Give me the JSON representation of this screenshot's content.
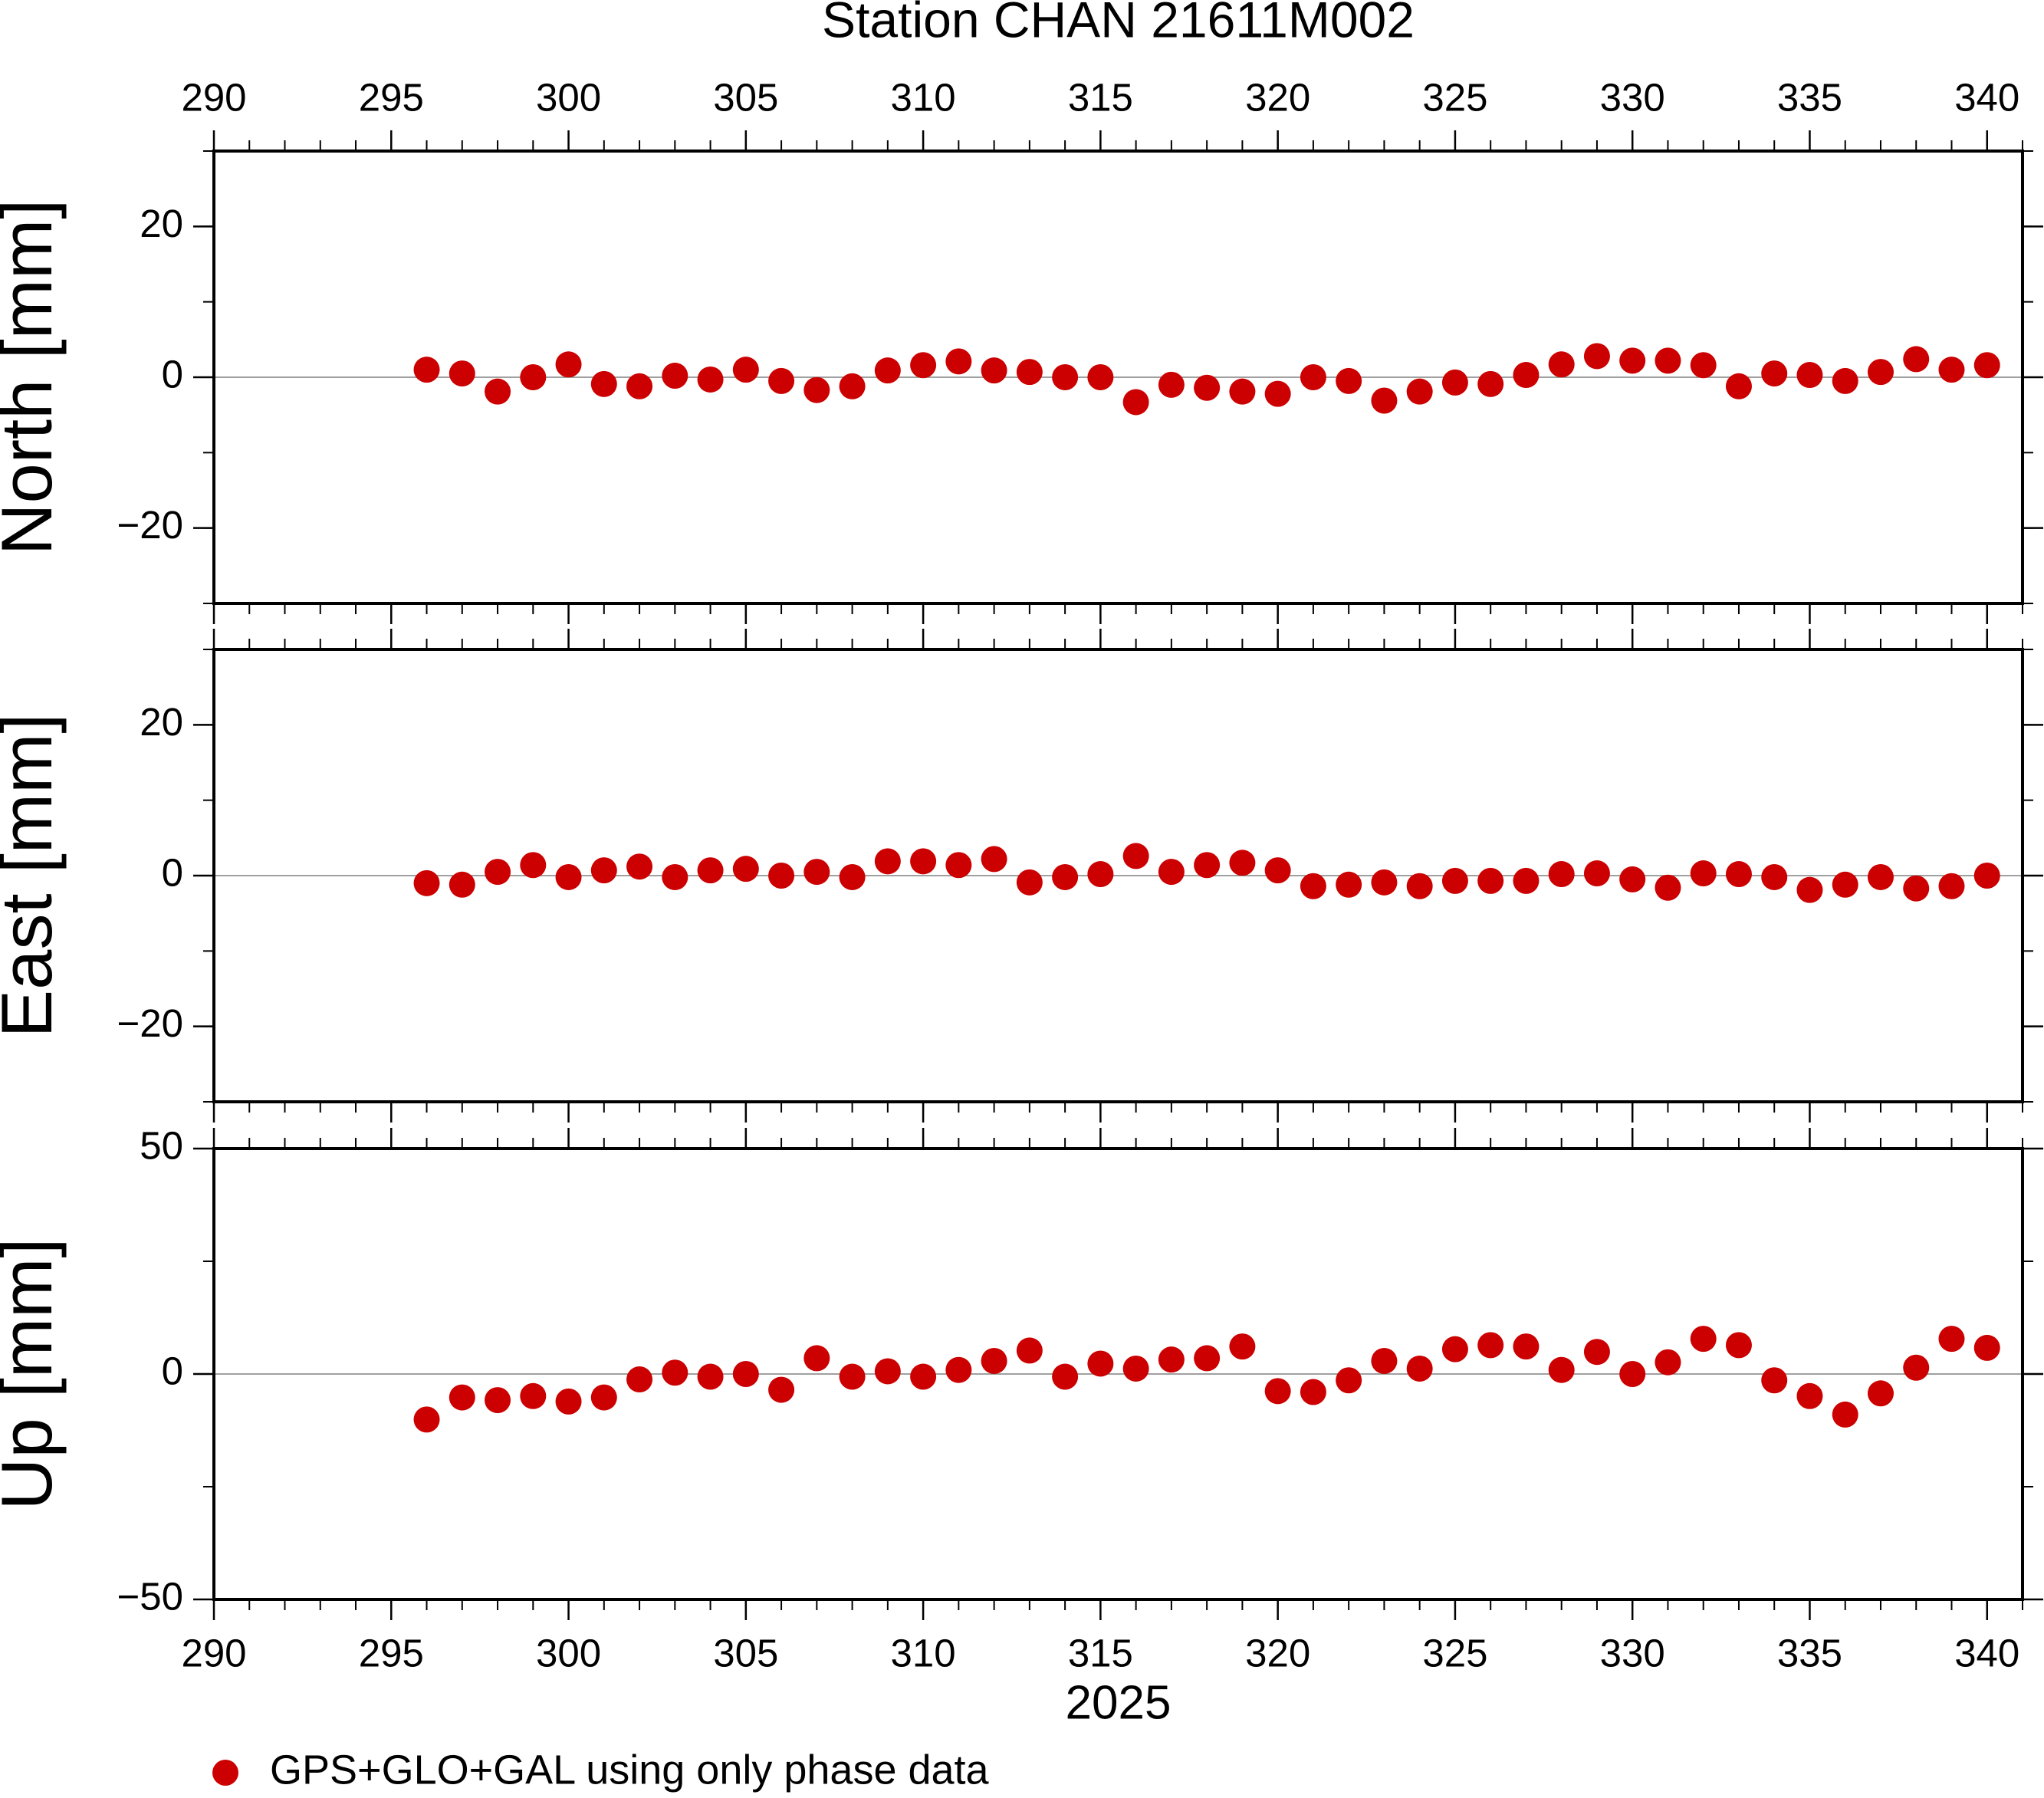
{
  "chart_data": [
    {
      "type": "scatter",
      "title": "Station CHAN 21611M002",
      "ylabel": "North [mm]",
      "color": "#cc0000",
      "x": [
        296,
        297,
        298,
        299,
        300,
        301,
        302,
        303,
        304,
        305,
        306,
        307,
        308,
        309,
        310,
        311,
        312,
        313,
        314,
        315,
        316,
        317,
        318,
        319,
        320,
        321,
        322,
        323,
        324,
        325,
        326,
        327,
        328,
        329,
        330,
        331,
        332,
        333,
        334,
        335,
        336,
        337,
        338,
        339,
        340
      ],
      "values": [
        1,
        0.5,
        -1.9,
        0,
        1.7,
        -0.9,
        -1.2,
        0.2,
        -0.3,
        1,
        -0.5,
        -1.7,
        -1.2,
        0.9,
        1.6,
        2.1,
        0.9,
        0.7,
        0,
        0,
        -3.3,
        -1,
        -1.4,
        -1.9,
        -2.2,
        0,
        -0.5,
        -3.1,
        -1.9,
        -0.7,
        -0.9,
        0.3,
        1.7,
        2.8,
        2.2,
        2.2,
        1.6,
        -1.2,
        0.5,
        0.3,
        -0.5,
        0.7,
        2.4,
        1,
        1.6
      ],
      "xlim": [
        290,
        341
      ],
      "xticks": [
        290,
        295,
        300,
        305,
        310,
        315,
        320,
        325,
        330,
        335,
        340
      ],
      "ylim": [
        -30,
        30
      ],
      "yticks": [
        {
          "value": -20,
          "label": "−20"
        },
        0,
        20
      ]
    },
    {
      "type": "scatter",
      "ylabel": "East [mm]",
      "color": "#cc0000",
      "x": [
        296,
        297,
        298,
        299,
        300,
        301,
        302,
        303,
        304,
        305,
        306,
        307,
        308,
        309,
        310,
        311,
        312,
        313,
        314,
        315,
        316,
        317,
        318,
        319,
        320,
        321,
        322,
        323,
        324,
        325,
        326,
        327,
        328,
        329,
        330,
        331,
        332,
        333,
        334,
        335,
        336,
        337,
        338,
        339,
        340
      ],
      "values": [
        -1,
        -1.2,
        0.5,
        1.4,
        -0.2,
        0.7,
        1.2,
        -0.2,
        0.7,
        0.9,
        0,
        0.5,
        -0.2,
        1.9,
        1.9,
        1.4,
        2.2,
        -0.9,
        -0.2,
        0.2,
        2.6,
        0.5,
        1.4,
        1.7,
        0.7,
        -1.4,
        -1.2,
        -0.9,
        -1.4,
        -0.7,
        -0.7,
        -0.7,
        0.2,
        0.3,
        -0.5,
        -1.6,
        0.3,
        0.2,
        -0.2,
        -1.9,
        -1.2,
        -0.2,
        -1.7,
        -1.4,
        0
      ],
      "xlim": [
        290,
        341
      ],
      "xticks": [
        290,
        295,
        300,
        305,
        310,
        315,
        320,
        325,
        330,
        335,
        340
      ],
      "ylim": [
        -30,
        30
      ],
      "yticks": [
        {
          "value": -20,
          "label": "−20"
        },
        0,
        20
      ]
    },
    {
      "type": "scatter",
      "ylabel": "Up [mm]",
      "xlabel": "2025",
      "x": [
        296,
        297,
        298,
        299,
        300,
        301,
        302,
        303,
        304,
        305,
        306,
        307,
        308,
        309,
        310,
        311,
        312,
        313,
        314,
        315,
        316,
        317,
        318,
        319,
        320,
        321,
        322,
        323,
        324,
        325,
        326,
        327,
        328,
        329,
        330,
        331,
        332,
        333,
        334,
        335,
        336,
        337,
        338,
        339,
        340
      ],
      "series": [
        {
          "name": "GPS+GLO+GAL using only phase data",
          "color": "#cc0000",
          "values": [
            -10.1,
            -5.2,
            -5.8,
            -4.9,
            -6.1,
            -5.2,
            -1.2,
            0.3,
            -0.6,
            0,
            -3.5,
            3.5,
            -0.6,
            0.6,
            -0.6,
            0.9,
            2.9,
            5.2,
            -0.6,
            2.3,
            1.2,
            3.2,
            3.5,
            6.1,
            -3.8,
            -4,
            -1.4,
            2.9,
            1.2,
            5.5,
            6.4,
            6.1,
            0.9,
            4.9,
            0,
            2.6,
            7.8,
            6.4,
            -1.4,
            -4.9,
            -9,
            -4.3,
            1.4,
            7.8,
            5.8
          ]
        }
      ],
      "xlim": [
        290,
        341
      ],
      "xticks": [
        290,
        295,
        300,
        305,
        310,
        315,
        320,
        325,
        330,
        335,
        340
      ],
      "ylim": [
        -50,
        50
      ],
      "yticks": [
        {
          "value": -50,
          "label": "−50"
        },
        0,
        50
      ]
    }
  ]
}
